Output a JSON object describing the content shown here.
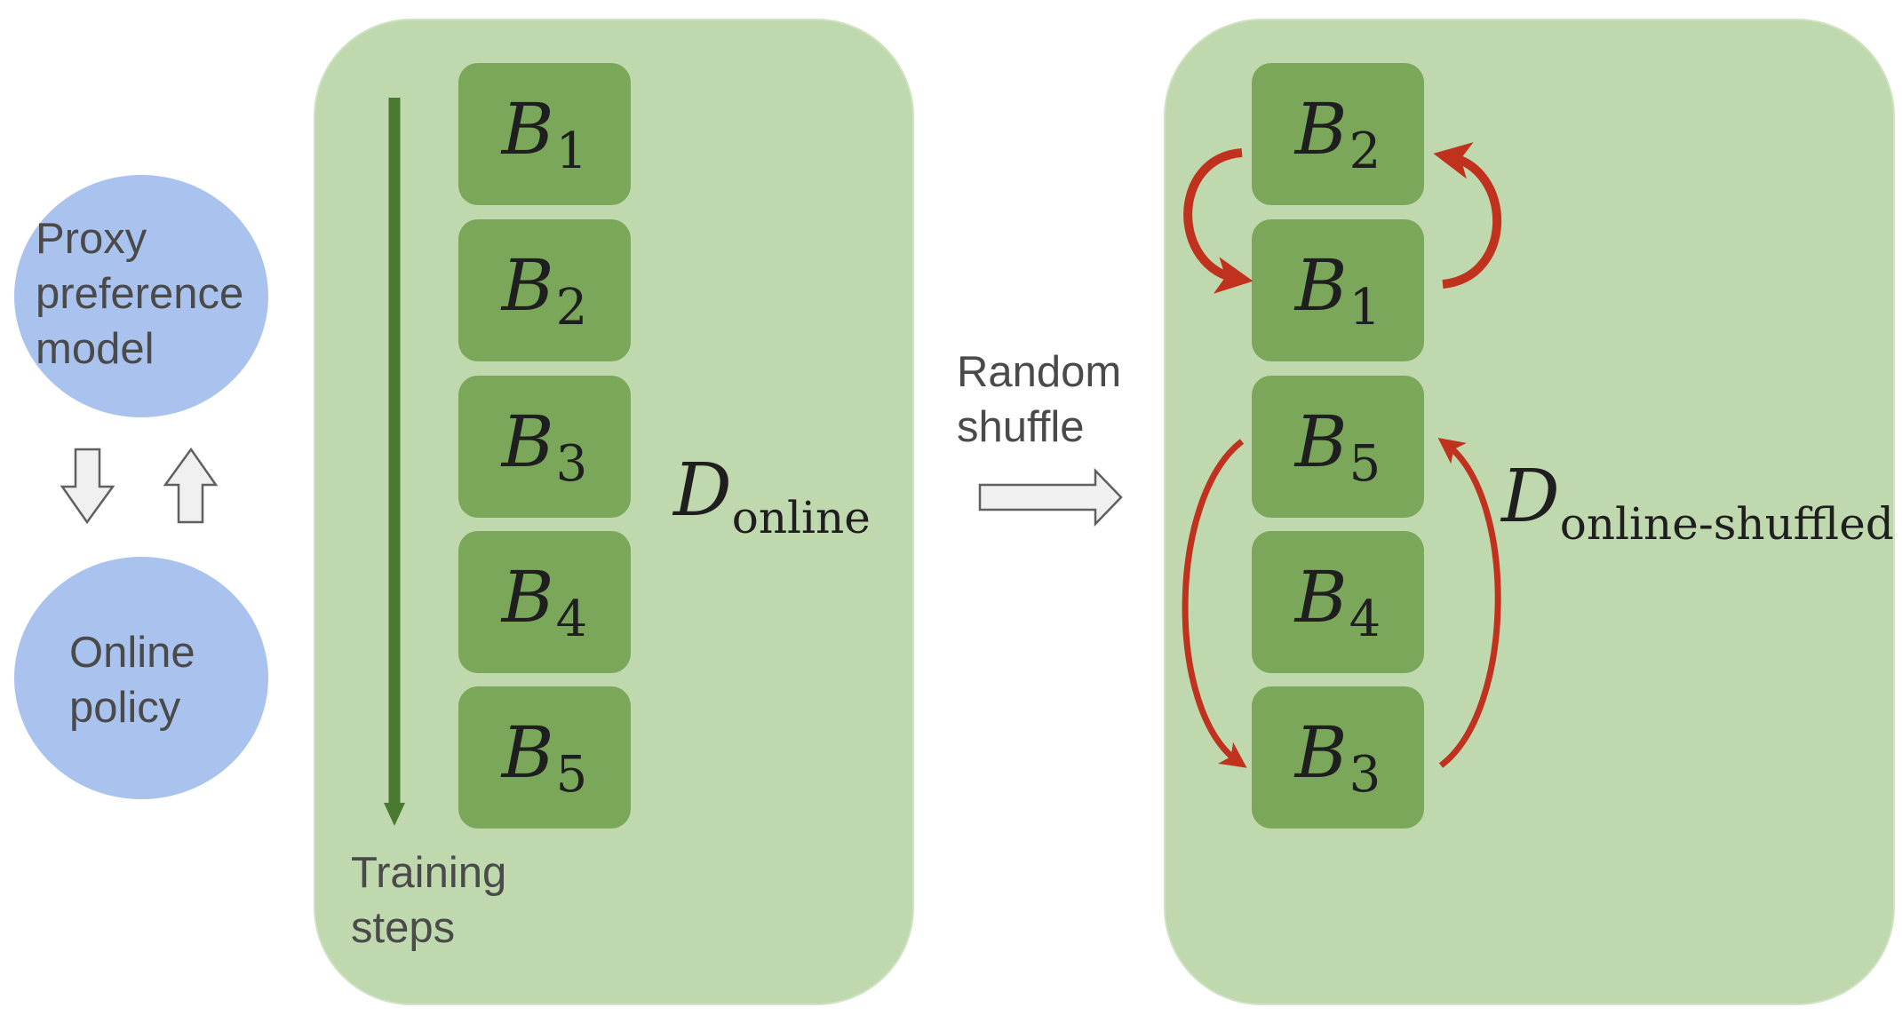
{
  "left": {
    "proxy_model": [
      "Proxy",
      "preference",
      "model"
    ],
    "online_policy": [
      "Online",
      "policy"
    ]
  },
  "online_panel": {
    "blocks": [
      {
        "base": "B",
        "sub": "1"
      },
      {
        "base": "B",
        "sub": "2"
      },
      {
        "base": "B",
        "sub": "3"
      },
      {
        "base": "B",
        "sub": "4"
      },
      {
        "base": "B",
        "sub": "5"
      }
    ],
    "dataset_symbol": "D",
    "dataset_subscript": "online",
    "axis_label": [
      "Training",
      "steps"
    ]
  },
  "transform": {
    "label": [
      "Random",
      "shuffle"
    ]
  },
  "shuffled_panel": {
    "blocks": [
      {
        "base": "B",
        "sub": "2"
      },
      {
        "base": "B",
        "sub": "1"
      },
      {
        "base": "B",
        "sub": "5"
      },
      {
        "base": "B",
        "sub": "4"
      },
      {
        "base": "B",
        "sub": "3"
      }
    ],
    "dataset_symbol": "D",
    "dataset_subscript": "online-shuffled"
  },
  "colors": {
    "ellipse": "#aac2ee",
    "panel": "#bfd8ae",
    "block": "#7aa75a",
    "time_arrow": "#4a7a30",
    "swap_arrow": "#c0321e",
    "hollow_arrow": "#f0f0f0"
  }
}
